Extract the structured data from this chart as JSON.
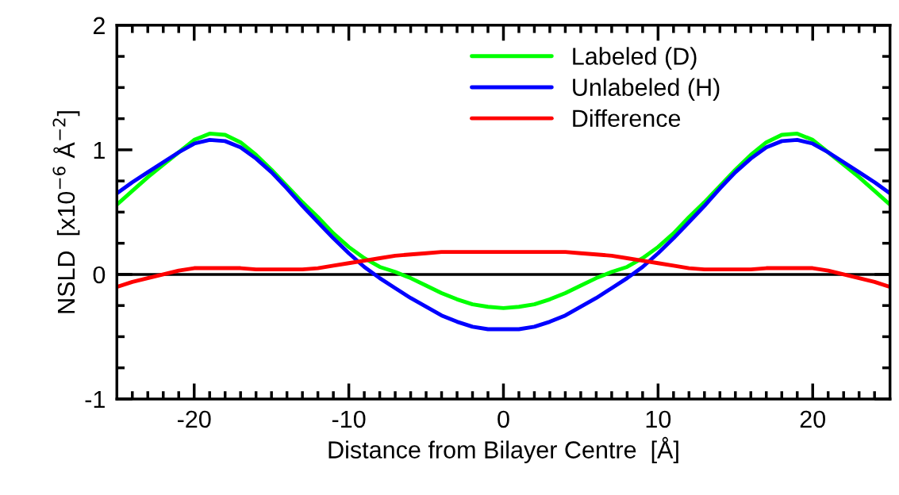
{
  "chart_data": {
    "type": "line",
    "xlabel": "Distance from Bilayer Centre  [Å]",
    "ylabel": "NSLD  [x10$^{−6}$ Å$^{−2}$]",
    "x": [
      -25,
      -24,
      -23,
      -22,
      -21,
      -20,
      -19,
      -18,
      -17,
      -16,
      -15,
      -14,
      -13,
      -12,
      -11,
      -10,
      -9,
      -8,
      -7,
      -6,
      -5,
      -4,
      -3,
      -2,
      -1,
      0,
      1,
      2,
      3,
      4,
      5,
      6,
      7,
      8,
      9,
      10,
      11,
      12,
      13,
      14,
      15,
      16,
      17,
      18,
      19,
      20,
      21,
      22,
      23,
      24,
      25
    ],
    "series": [
      {
        "name": "Labeled (D)",
        "color": "#00ff00",
        "values": [
          0.56,
          0.67,
          0.78,
          0.88,
          0.98,
          1.08,
          1.13,
          1.12,
          1.06,
          0.96,
          0.84,
          0.71,
          0.58,
          0.46,
          0.33,
          0.22,
          0.13,
          0.06,
          0.02,
          -0.03,
          -0.09,
          -0.15,
          -0.2,
          -0.24,
          -0.26,
          -0.27,
          -0.26,
          -0.24,
          -0.2,
          -0.15,
          -0.09,
          -0.03,
          0.02,
          0.06,
          0.13,
          0.22,
          0.33,
          0.46,
          0.58,
          0.71,
          0.84,
          0.96,
          1.06,
          1.12,
          1.13,
          1.08,
          0.98,
          0.88,
          0.78,
          0.67,
          0.56
        ]
      },
      {
        "name": "Unlabeled (H)",
        "color": "#0000ff",
        "values": [
          0.65,
          0.74,
          0.82,
          0.9,
          0.98,
          1.05,
          1.08,
          1.07,
          1.02,
          0.93,
          0.82,
          0.69,
          0.55,
          0.42,
          0.29,
          0.17,
          0.06,
          -0.03,
          -0.11,
          -0.19,
          -0.26,
          -0.33,
          -0.38,
          -0.42,
          -0.44,
          -0.44,
          -0.44,
          -0.42,
          -0.38,
          -0.33,
          -0.26,
          -0.19,
          -0.11,
          -0.03,
          0.06,
          0.17,
          0.29,
          0.42,
          0.55,
          0.69,
          0.82,
          0.93,
          1.02,
          1.07,
          1.08,
          1.05,
          0.98,
          0.9,
          0.82,
          0.74,
          0.65
        ]
      },
      {
        "name": "Difference",
        "color": "#ff0000",
        "values": [
          -0.1,
          -0.06,
          -0.03,
          0.0,
          0.03,
          0.05,
          0.05,
          0.05,
          0.05,
          0.04,
          0.04,
          0.04,
          0.04,
          0.05,
          0.07,
          0.09,
          0.11,
          0.13,
          0.15,
          0.16,
          0.17,
          0.18,
          0.18,
          0.18,
          0.18,
          0.18,
          0.18,
          0.18,
          0.18,
          0.18,
          0.17,
          0.16,
          0.15,
          0.13,
          0.11,
          0.09,
          0.07,
          0.05,
          0.04,
          0.04,
          0.04,
          0.04,
          0.05,
          0.05,
          0.05,
          0.05,
          0.03,
          0.0,
          -0.03,
          -0.06,
          -0.1
        ]
      }
    ],
    "xlim": [
      -25,
      25
    ],
    "xticks": [
      -20,
      -10,
      0,
      10,
      20,
      {
        "value": -24,
        "label": null
      },
      {
        "value": -23,
        "label": null
      },
      {
        "value": -22,
        "label": null
      },
      {
        "value": -21,
        "label": null
      },
      {
        "value": -19,
        "label": null
      },
      {
        "value": -18,
        "label": null
      },
      {
        "value": -17,
        "label": null
      },
      {
        "value": -16,
        "label": null
      },
      {
        "value": -15,
        "label": null
      },
      {
        "value": -14,
        "label": null
      },
      {
        "value": -13,
        "label": null
      },
      {
        "value": -12,
        "label": null
      },
      {
        "value": -11,
        "label": null
      },
      {
        "value": -9,
        "label": null
      },
      {
        "value": -8,
        "label": null
      },
      {
        "value": -7,
        "label": null
      },
      {
        "value": -6,
        "label": null
      },
      {
        "value": -5,
        "label": null
      },
      {
        "value": -4,
        "label": null
      },
      {
        "value": -3,
        "label": null
      },
      {
        "value": -2,
        "label": null
      },
      {
        "value": -1,
        "label": null
      },
      {
        "value": 1,
        "label": null
      },
      {
        "value": 2,
        "label": null
      },
      {
        "value": 3,
        "label": null
      },
      {
        "value": 4,
        "label": null
      },
      {
        "value": 5,
        "label": null
      },
      {
        "value": 6,
        "label": null
      },
      {
        "value": 7,
        "label": null
      },
      {
        "value": 8,
        "label": null
      },
      {
        "value": 9,
        "label": null
      },
      {
        "value": 11,
        "label": null
      },
      {
        "value": 12,
        "label": null
      },
      {
        "value": 13,
        "label": null
      },
      {
        "value": 14,
        "label": null
      },
      {
        "value": 15,
        "label": null
      },
      {
        "value": 16,
        "label": null
      },
      {
        "value": 17,
        "label": null
      },
      {
        "value": 18,
        "label": null
      },
      {
        "value": 19,
        "label": null
      },
      {
        "value": 21,
        "label": null
      },
      {
        "value": 22,
        "label": null
      },
      {
        "value": 23,
        "label": null
      },
      {
        "value": 24,
        "label": null
      }
    ],
    "ylim": [
      -1,
      2
    ],
    "yticks": [
      -1,
      0,
      1,
      2,
      {
        "value": -0.75,
        "label": null
      },
      {
        "value": -0.5,
        "label": null
      },
      {
        "value": -0.25,
        "label": null
      },
      {
        "value": 0.25,
        "label": null
      },
      {
        "value": 0.5,
        "label": null
      },
      {
        "value": 0.75,
        "label": null
      },
      {
        "value": 1.25,
        "label": null
      },
      {
        "value": 1.5,
        "label": null
      },
      {
        "value": 1.75,
        "label": null
      }
    ],
    "ref_lines": [
      {
        "axis": "y",
        "value": 0,
        "color": "#000000"
      }
    ],
    "legend": "top",
    "grid": false,
    "marker": "none",
    "line_style": "solid"
  }
}
